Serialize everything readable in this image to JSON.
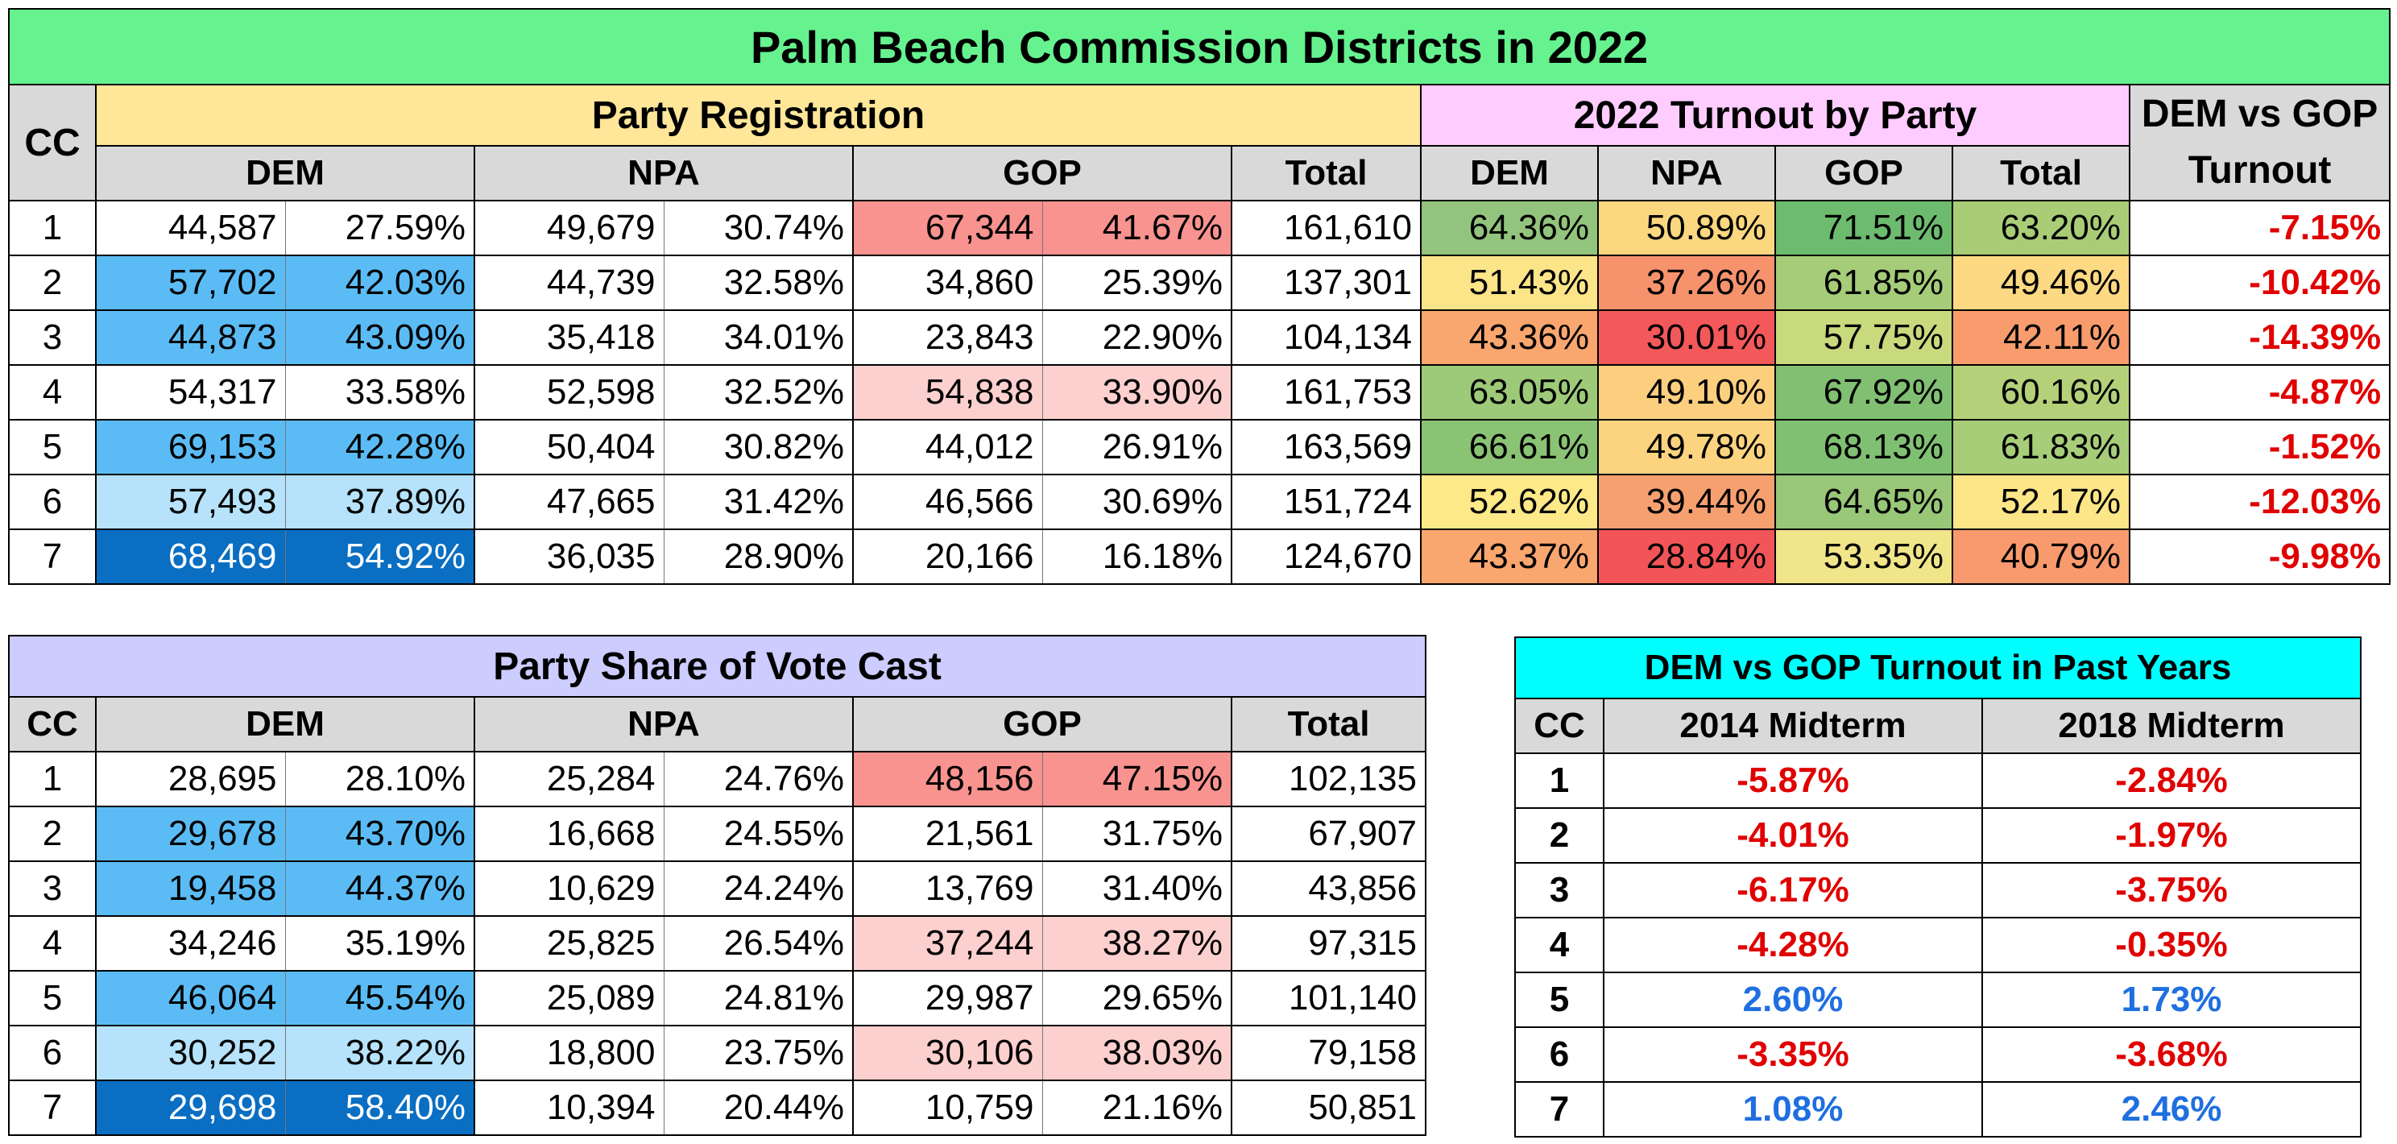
{
  "title": "Palm Beach Commission Districts in 2022",
  "colors": {
    "title_bg": "#66f28f",
    "registration_bg": "#ffe699",
    "turnout_bg": "#ffccff",
    "vote_share_bg": "#ccccff",
    "past_years_bg": "#00ffff",
    "header_bg": "#d9d9d9",
    "negative_text": "#e00000",
    "positive_text": "#1f6fe0"
  },
  "table1": {
    "cc_label": "CC",
    "registration_label": "Party Registration",
    "turnout_label": "2022 Turnout by Party",
    "diff_label_line1": "DEM vs GOP",
    "diff_label_line2": "Turnout",
    "cols": {
      "dem": "DEM",
      "npa": "NPA",
      "gop": "GOP",
      "total": "Total"
    },
    "rows": [
      {
        "cc": "1",
        "dem_n": "44,587",
        "dem_p": "27.59%",
        "npa_n": "49,679",
        "npa_p": "30.74%",
        "gop_n": "67,344",
        "gop_p": "41.67%",
        "total": "161,610",
        "t_dem": "64.36%",
        "t_npa": "50.89%",
        "t_gop": "71.51%",
        "t_total": "63.20%",
        "diff": "-7.15%",
        "dem_bg": "#ffffff",
        "gop_bg": "#f8938f",
        "t_dem_bg": "#93c47d",
        "t_npa_bg": "#fbd780",
        "t_gop_bg": "#6dbb6f",
        "t_total_bg": "#a9cd77"
      },
      {
        "cc": "2",
        "dem_n": "57,702",
        "dem_p": "42.03%",
        "npa_n": "44,739",
        "npa_p": "32.58%",
        "gop_n": "34,860",
        "gop_p": "25.39%",
        "total": "137,301",
        "t_dem": "51.43%",
        "t_npa": "37.26%",
        "t_gop": "61.85%",
        "t_total": "49.46%",
        "diff": "-10.42%",
        "dem_bg": "#5bbcf5",
        "gop_bg": "#ffffff",
        "t_dem_bg": "#fce588",
        "t_npa_bg": "#f6936d",
        "t_gop_bg": "#a5cc78",
        "t_total_bg": "#fcd982"
      },
      {
        "cc": "3",
        "dem_n": "44,873",
        "dem_p": "43.09%",
        "npa_n": "35,418",
        "npa_p": "34.01%",
        "gop_n": "23,843",
        "gop_p": "22.90%",
        "total": "104,134",
        "t_dem": "43.36%",
        "t_npa": "30.01%",
        "t_gop": "57.75%",
        "t_total": "42.11%",
        "diff": "-14.39%",
        "dem_bg": "#5bbcf5",
        "gop_bg": "#ffffff",
        "t_dem_bg": "#f9a66f",
        "t_npa_bg": "#f3585a",
        "t_gop_bg": "#c9d97e",
        "t_total_bg": "#f89c6d"
      },
      {
        "cc": "4",
        "dem_n": "54,317",
        "dem_p": "33.58%",
        "npa_n": "52,598",
        "npa_p": "32.52%",
        "gop_n": "54,838",
        "gop_p": "33.90%",
        "total": "161,753",
        "t_dem": "63.05%",
        "t_npa": "49.10%",
        "t_gop": "67.92%",
        "t_total": "60.16%",
        "diff": "-4.87%",
        "dem_bg": "#ffffff",
        "gop_bg": "#fcd0cf",
        "t_dem_bg": "#9dca79",
        "t_npa_bg": "#fccf7f",
        "t_gop_bg": "#81c072",
        "t_total_bg": "#b4d17a"
      },
      {
        "cc": "5",
        "dem_n": "69,153",
        "dem_p": "42.28%",
        "npa_n": "50,404",
        "npa_p": "30.82%",
        "gop_n": "44,012",
        "gop_p": "26.91%",
        "total": "163,569",
        "t_dem": "66.61%",
        "t_npa": "49.78%",
        "t_gop": "68.13%",
        "t_total": "61.83%",
        "diff": "-1.52%",
        "dem_bg": "#5bbcf5",
        "gop_bg": "#ffffff",
        "t_dem_bg": "#8ac374",
        "t_npa_bg": "#fcd480",
        "t_gop_bg": "#80c072",
        "t_total_bg": "#a7cd79"
      },
      {
        "cc": "6",
        "dem_n": "57,493",
        "dem_p": "37.89%",
        "npa_n": "47,665",
        "npa_p": "31.42%",
        "gop_n": "46,566",
        "gop_p": "30.69%",
        "total": "151,724",
        "t_dem": "52.62%",
        "t_npa": "39.44%",
        "t_gop": "64.65%",
        "t_total": "52.17%",
        "diff": "-12.03%",
        "dem_bg": "#b6e3fb",
        "gop_bg": "#ffffff",
        "t_dem_bg": "#fde987",
        "t_npa_bg": "#f7a06f",
        "t_gop_bg": "#98c777",
        "t_total_bg": "#fde687"
      },
      {
        "cc": "7",
        "dem_n": "68,469",
        "dem_p": "54.92%",
        "npa_n": "36,035",
        "npa_p": "28.90%",
        "gop_n": "20,166",
        "gop_p": "16.18%",
        "total": "124,670",
        "t_dem": "43.37%",
        "t_npa": "28.84%",
        "t_gop": "53.35%",
        "t_total": "40.79%",
        "diff": "-9.98%",
        "dem_bg": "#0a6ec2",
        "gop_bg": "#ffffff",
        "t_dem_bg": "#f9a66f",
        "t_npa_bg": "#f25557",
        "t_gop_bg": "#f1e58a",
        "t_total_bg": "#f89a6d"
      }
    ]
  },
  "table2": {
    "label": "Party Share of Vote Cast",
    "cc_label": "CC",
    "cols": {
      "dem": "DEM",
      "npa": "NPA",
      "gop": "GOP",
      "total": "Total"
    },
    "rows": [
      {
        "cc": "1",
        "dem_n": "28,695",
        "dem_p": "28.10%",
        "npa_n": "25,284",
        "npa_p": "24.76%",
        "gop_n": "48,156",
        "gop_p": "47.15%",
        "total": "102,135",
        "dem_bg": "#ffffff",
        "gop_bg": "#f8938f"
      },
      {
        "cc": "2",
        "dem_n": "29,678",
        "dem_p": "43.70%",
        "npa_n": "16,668",
        "npa_p": "24.55%",
        "gop_n": "21,561",
        "gop_p": "31.75%",
        "total": "67,907",
        "dem_bg": "#5bbcf5",
        "gop_bg": "#ffffff"
      },
      {
        "cc": "3",
        "dem_n": "19,458",
        "dem_p": "44.37%",
        "npa_n": "10,629",
        "npa_p": "24.24%",
        "gop_n": "13,769",
        "gop_p": "31.40%",
        "total": "43,856",
        "dem_bg": "#5bbcf5",
        "gop_bg": "#ffffff"
      },
      {
        "cc": "4",
        "dem_n": "34,246",
        "dem_p": "35.19%",
        "npa_n": "25,825",
        "npa_p": "26.54%",
        "gop_n": "37,244",
        "gop_p": "38.27%",
        "total": "97,315",
        "dem_bg": "#ffffff",
        "gop_bg": "#fcd0cf"
      },
      {
        "cc": "5",
        "dem_n": "46,064",
        "dem_p": "45.54%",
        "npa_n": "25,089",
        "npa_p": "24.81%",
        "gop_n": "29,987",
        "gop_p": "29.65%",
        "total": "101,140",
        "dem_bg": "#5bbcf5",
        "gop_bg": "#ffffff"
      },
      {
        "cc": "6",
        "dem_n": "30,252",
        "dem_p": "38.22%",
        "npa_n": "18,800",
        "npa_p": "23.75%",
        "gop_n": "30,106",
        "gop_p": "38.03%",
        "total": "79,158",
        "dem_bg": "#b6e3fb",
        "gop_bg": "#fcd0cf"
      },
      {
        "cc": "7",
        "dem_n": "29,698",
        "dem_p": "58.40%",
        "npa_n": "10,394",
        "npa_p": "20.44%",
        "gop_n": "10,759",
        "gop_p": "21.16%",
        "total": "50,851",
        "dem_bg": "#0a6ec2",
        "gop_bg": "#ffffff"
      }
    ]
  },
  "table3": {
    "label": "DEM vs GOP Turnout in Past Years",
    "cc_label": "CC",
    "col_2014": "2014 Midterm",
    "col_2018": "2018 Midterm",
    "rows": [
      {
        "cc": "1",
        "m2014": "-5.87%",
        "m2018": "-2.84%"
      },
      {
        "cc": "2",
        "m2014": "-4.01%",
        "m2018": "-1.97%"
      },
      {
        "cc": "3",
        "m2014": "-6.17%",
        "m2018": "-3.75%"
      },
      {
        "cc": "4",
        "m2014": "-4.28%",
        "m2018": "-0.35%"
      },
      {
        "cc": "5",
        "m2014": "2.60%",
        "m2018": "1.73%"
      },
      {
        "cc": "6",
        "m2014": "-3.35%",
        "m2018": "-3.68%"
      },
      {
        "cc": "7",
        "m2014": "1.08%",
        "m2018": "2.46%"
      }
    ]
  }
}
